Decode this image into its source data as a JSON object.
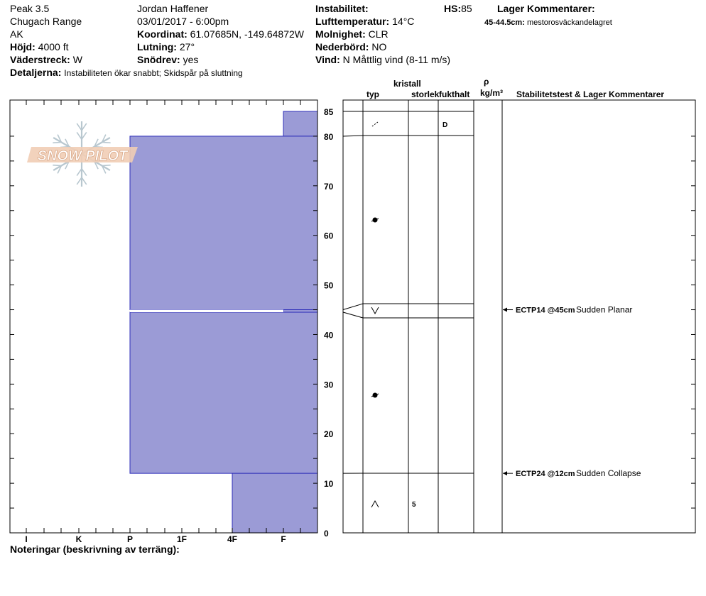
{
  "header": {
    "location": "Peak 3.5",
    "range": "Chugach Range",
    "state": "AK",
    "elevation_label": "Höjd:",
    "elevation_value": "4000 ft",
    "aspect_label": "Väderstreck:",
    "aspect_value": "W",
    "details_label": "Detaljerna:",
    "details_value": "Instabiliteten ökar snabbt; Skidspår på sluttning",
    "observer": "Jordan Haffener",
    "datetime": "03/01/2017 - 6:00pm",
    "coord_label": "Koordinat:",
    "coord_value": "61.07685N, -149.64872W",
    "slope_label": "Lutning:",
    "slope_value": "27°",
    "drift_label": "Snödrev:",
    "drift_value": "yes",
    "instability_label": "Instabilitet:",
    "airtemp_label": "Lufttemperatur:",
    "airtemp_value": "14°C",
    "sky_label": "Molnighet:",
    "sky_value": "CLR",
    "precip_label": "Nederbörd:",
    "precip_value": "NO",
    "wind_label": "Vind:",
    "wind_value": "N Måttlig vind (8-11 m/s)",
    "hs_label": "HS:",
    "hs_value": "85",
    "layer_comments_title": "Lager Kommentarer:",
    "layer_comment_range": "45-44.5cm:",
    "layer_comment_text": "mestorosväckandelagret"
  },
  "logo_text": "SNOW PILOT",
  "columns": {
    "crystal": "kristall",
    "type": "typ",
    "size": "storlek",
    "moisture": "fukthalt",
    "density_symbol": "ρ",
    "density_unit": "kg/m³",
    "stability": "Stabilitetstest & Lager Kommentarer"
  },
  "notes_label": "Noteringar (beskrivning av terräng):",
  "colors": {
    "fill": "#9b9bd6",
    "edge": "#2c2cb8"
  },
  "chart_data": {
    "type": "bar",
    "title": "",
    "xlabel": "",
    "ylabel": "",
    "hardness_scale": [
      "I",
      "K",
      "P",
      "1F",
      "4F",
      "F"
    ],
    "ylim": [
      0,
      85
    ],
    "y_ticks": [
      0,
      10,
      20,
      30,
      40,
      50,
      60,
      70,
      80,
      85
    ],
    "layers": [
      {
        "top": 85,
        "bottom": 80,
        "hardness": "F",
        "grain": "decomposing",
        "moisture": "D",
        "size": ""
      },
      {
        "top": 80,
        "bottom": 45,
        "hardness": "P",
        "grain": "rounded",
        "moisture": "",
        "size": ""
      },
      {
        "top": 45,
        "bottom": 44.5,
        "hardness": "F",
        "grain": "surface-hoar",
        "moisture": "",
        "size": ""
      },
      {
        "top": 44.5,
        "bottom": 12,
        "hardness": "P",
        "grain": "rounded",
        "moisture": "",
        "size": ""
      },
      {
        "top": 12,
        "bottom": 0,
        "hardness": "4F",
        "grain": "depth-hoar",
        "moisture": "",
        "size": "5"
      }
    ],
    "tests": [
      {
        "depth": 45,
        "code": "ECTP14 @45cm",
        "result": "Sudden Planar"
      },
      {
        "depth": 12,
        "code": "ECTP24 @12cm",
        "result": "Sudden Collapse"
      }
    ]
  }
}
